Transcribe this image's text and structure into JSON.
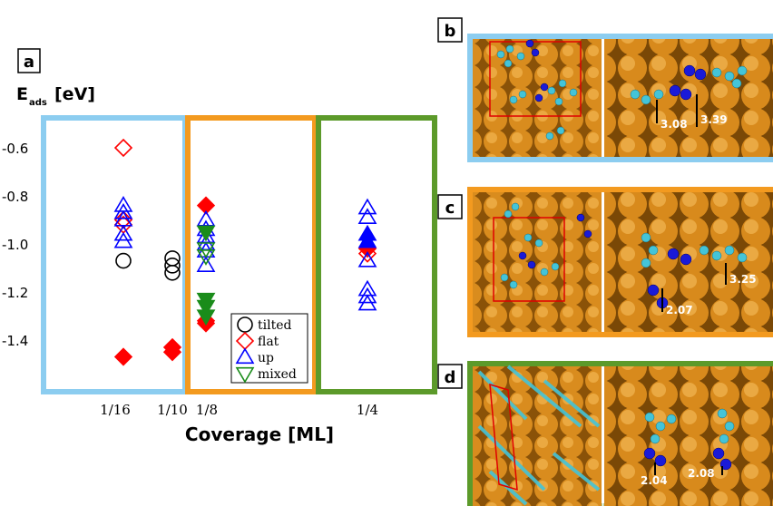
{
  "figure": {
    "panel_labels": [
      "a",
      "b",
      "c",
      "d"
    ],
    "ylabel_main": "E",
    "ylabel_sub": "ads",
    "ylabel_unit": "[eV]",
    "xlabel": "Coverage [ML]"
  },
  "panel_images": {
    "b": {
      "labels": [
        "3.08",
        "3.39"
      ],
      "border": "#8ccdf0"
    },
    "c": {
      "labels": [
        "3.25",
        "2.07"
      ],
      "border": "#f39a1f"
    },
    "d": {
      "labels": [
        "2.04",
        "2.08"
      ],
      "border": "#5c9a2a"
    }
  },
  "chart_data": {
    "type": "scatter",
    "title": "",
    "xlabel": "Coverage [ML]",
    "ylabel": "E_ads [eV]",
    "ylim": [
      -1.55,
      -0.45
    ],
    "yticks": [
      -0.6,
      -0.8,
      -1.0,
      -1.2,
      -1.4
    ],
    "ytick_labels": [
      "-0.6",
      "-0.8",
      "-1.0",
      "-1.2",
      "-1.4"
    ],
    "categories": [
      "1/16",
      "1/10",
      "1/8",
      "1/4"
    ],
    "legend": {
      "position": "lower-right of panel a",
      "entries": [
        {
          "name": "tilted",
          "marker": "circle",
          "color": "#000000"
        },
        {
          "name": "flat",
          "marker": "diamond",
          "color": "#ff0000"
        },
        {
          "name": "up",
          "marker": "triangle-up",
          "color": "#0000ff"
        },
        {
          "name": "mixed",
          "marker": "triangle-down",
          "color": "#1a8c1a"
        }
      ]
    },
    "region_colors": [
      "#8ccdf0",
      "#f39a1f",
      "#5c9a2a"
    ],
    "series": [
      {
        "name": "tilted",
        "color": "#000000",
        "marker": "circle",
        "points": [
          {
            "x": "1/16",
            "y": -1.07,
            "filled": false
          },
          {
            "x": "1/10",
            "y": -1.06,
            "filled": false
          },
          {
            "x": "1/10",
            "y": -1.09,
            "filled": false
          },
          {
            "x": "1/10",
            "y": -1.12,
            "filled": false
          }
        ]
      },
      {
        "name": "flat",
        "color": "#ff0000",
        "marker": "diamond",
        "points": [
          {
            "x": "1/16",
            "y": -0.6,
            "filled": false
          },
          {
            "x": "1/16",
            "y": -0.9,
            "filled": false
          },
          {
            "x": "1/16",
            "y": -0.92,
            "filled": false
          },
          {
            "x": "1/16",
            "y": -1.47,
            "filled": true
          },
          {
            "x": "1/10",
            "y": -1.43,
            "filled": true
          },
          {
            "x": "1/10",
            "y": -1.45,
            "filled": true
          },
          {
            "x": "1/8",
            "y": -0.84,
            "filled": true
          },
          {
            "x": "1/8",
            "y": -1.32,
            "filled": true
          },
          {
            "x": "1/8",
            "y": -1.33,
            "filled": true
          },
          {
            "x": "1/4",
            "y": -1.02,
            "filled": true
          },
          {
            "x": "1/4",
            "y": -1.04,
            "filled": false
          }
        ]
      },
      {
        "name": "up",
        "color": "#0000ff",
        "marker": "triangle-up",
        "points": [
          {
            "x": "1/16",
            "y": -0.84,
            "filled": false
          },
          {
            "x": "1/16",
            "y": -0.87,
            "filled": false
          },
          {
            "x": "1/16",
            "y": -0.9,
            "filled": false
          },
          {
            "x": "1/16",
            "y": -0.96,
            "filled": false
          },
          {
            "x": "1/16",
            "y": -0.99,
            "filled": false
          },
          {
            "x": "1/8",
            "y": -0.9,
            "filled": false
          },
          {
            "x": "1/8",
            "y": -0.94,
            "filled": false
          },
          {
            "x": "1/8",
            "y": -0.97,
            "filled": false
          },
          {
            "x": "1/8",
            "y": -1.0,
            "filled": false
          },
          {
            "x": "1/8",
            "y": -1.03,
            "filled": false
          },
          {
            "x": "1/8",
            "y": -1.09,
            "filled": false
          },
          {
            "x": "1/4",
            "y": -0.85,
            "filled": false
          },
          {
            "x": "1/4",
            "y": -0.89,
            "filled": false
          },
          {
            "x": "1/4",
            "y": -0.96,
            "filled": true
          },
          {
            "x": "1/4",
            "y": -0.99,
            "filled": true
          },
          {
            "x": "1/4",
            "y": -1.07,
            "filled": false
          },
          {
            "x": "1/4",
            "y": -1.19,
            "filled": false
          },
          {
            "x": "1/4",
            "y": -1.22,
            "filled": false
          },
          {
            "x": "1/4",
            "y": -1.25,
            "filled": false
          }
        ]
      },
      {
        "name": "mixed",
        "color": "#1a8c1a",
        "marker": "triangle-down",
        "points": [
          {
            "x": "1/8",
            "y": -0.95,
            "filled": true
          },
          {
            "x": "1/8",
            "y": -1.02,
            "filled": false
          },
          {
            "x": "1/8",
            "y": -1.05,
            "filled": false
          },
          {
            "x": "1/8",
            "y": -1.23,
            "filled": true
          },
          {
            "x": "1/8",
            "y": -1.26,
            "filled": true
          },
          {
            "x": "1/8",
            "y": -1.3,
            "filled": true
          }
        ]
      }
    ]
  }
}
